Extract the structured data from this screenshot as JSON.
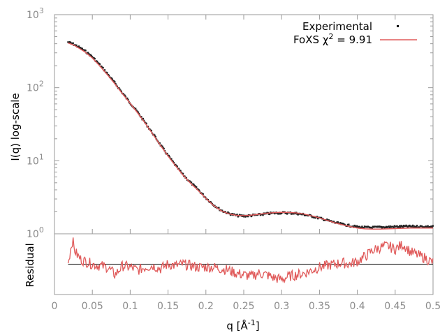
{
  "chart_data": [
    {
      "type": "scatter",
      "yscale": "log",
      "ylabel": "I(q) log-scale",
      "xlim": [
        0,
        0.5
      ],
      "ylim": [
        1,
        1000
      ],
      "yticks": [
        {
          "value": 1,
          "base": "10",
          "exp": "0"
        },
        {
          "value": 10,
          "base": "10",
          "exp": "1"
        },
        {
          "value": 100,
          "base": "10",
          "exp": "2"
        },
        {
          "value": 1000,
          "base": "10",
          "exp": "3"
        }
      ],
      "legend_position": "top-right",
      "legend": [
        {
          "label": "Experimental",
          "color": "#000000"
        },
        {
          "label": "FoXS χ",
          "sup": "2",
          "suffix": " = 9.91",
          "color": "#e05a5a"
        }
      ],
      "series": [
        {
          "name": "Experimental",
          "style": "points",
          "color": "#000000",
          "x": [
            0.018,
            0.025,
            0.03,
            0.04,
            0.05,
            0.06,
            0.07,
            0.08,
            0.09,
            0.1,
            0.11,
            0.12,
            0.13,
            0.14,
            0.15,
            0.16,
            0.17,
            0.18,
            0.19,
            0.2,
            0.21,
            0.22,
            0.23,
            0.24,
            0.25,
            0.26,
            0.27,
            0.28,
            0.29,
            0.3,
            0.31,
            0.32,
            0.33,
            0.34,
            0.35,
            0.36,
            0.37,
            0.38,
            0.39,
            0.4,
            0.41,
            0.42,
            0.43,
            0.44,
            0.45,
            0.46,
            0.47,
            0.48,
            0.49,
            0.5
          ],
          "y": [
            420,
            395,
            370,
            320,
            265,
            205,
            155,
            115,
            84,
            62,
            46,
            33,
            23.5,
            16.5,
            11.8,
            8.6,
            6.4,
            5.0,
            4.0,
            3.1,
            2.5,
            2.1,
            1.9,
            1.78,
            1.75,
            1.78,
            1.82,
            1.88,
            1.92,
            1.94,
            1.93,
            1.9,
            1.83,
            1.74,
            1.64,
            1.53,
            1.43,
            1.35,
            1.29,
            1.24,
            1.22,
            1.22,
            1.23,
            1.24,
            1.25,
            1.26,
            1.26,
            1.26,
            1.25,
            1.25
          ]
        },
        {
          "name": "FoXS χ2 = 9.91",
          "style": "line",
          "color": "#e05a5a",
          "x": [
            0.018,
            0.025,
            0.03,
            0.04,
            0.05,
            0.06,
            0.07,
            0.08,
            0.09,
            0.1,
            0.11,
            0.12,
            0.13,
            0.14,
            0.15,
            0.16,
            0.17,
            0.18,
            0.19,
            0.2,
            0.21,
            0.22,
            0.23,
            0.24,
            0.25,
            0.26,
            0.27,
            0.28,
            0.29,
            0.3,
            0.31,
            0.32,
            0.33,
            0.34,
            0.35,
            0.36,
            0.37,
            0.38,
            0.39,
            0.4,
            0.41,
            0.42,
            0.43,
            0.44,
            0.45,
            0.46,
            0.47,
            0.48,
            0.49,
            0.5
          ],
          "y": [
            410,
            385,
            360,
            310,
            255,
            198,
            150,
            112,
            82,
            61,
            45,
            32.5,
            23,
            16.2,
            11.6,
            8.5,
            6.3,
            4.9,
            3.9,
            3.05,
            2.45,
            2.07,
            1.88,
            1.79,
            1.77,
            1.8,
            1.85,
            1.91,
            1.95,
            1.97,
            1.96,
            1.93,
            1.86,
            1.76,
            1.65,
            1.53,
            1.42,
            1.33,
            1.26,
            1.2,
            1.17,
            1.16,
            1.16,
            1.17,
            1.18,
            1.19,
            1.2,
            1.2,
            1.2,
            1.2
          ]
        }
      ]
    },
    {
      "type": "line",
      "ylabel": "Residual",
      "xlabel": "q [Å",
      "xlabel_sup": "-1",
      "xlabel_suffix": "]",
      "xlim": [
        0,
        0.5
      ],
      "xticks": [
        "0",
        "0.05",
        "0.1",
        "0.15",
        "0.2",
        "0.25",
        "0.3",
        "0.35",
        "0.4",
        "0.45",
        "0.5"
      ],
      "ylim": [
        -1,
        1
      ],
      "reference_line": 0,
      "series": [
        {
          "name": "",
          "color": "#e05a5a",
          "x": [
            0.018,
            0.02,
            0.022,
            0.024,
            0.026,
            0.028,
            0.03,
            0.035,
            0.04,
            0.045,
            0.05,
            0.06,
            0.07,
            0.08,
            0.085,
            0.09,
            0.1,
            0.11,
            0.12,
            0.13,
            0.14,
            0.15,
            0.16,
            0.17,
            0.18,
            0.19,
            0.2,
            0.21,
            0.22,
            0.23,
            0.24,
            0.25,
            0.26,
            0.27,
            0.28,
            0.29,
            0.3,
            0.31,
            0.32,
            0.33,
            0.34,
            0.35,
            0.36,
            0.37,
            0.38,
            0.39,
            0.4,
            0.41,
            0.42,
            0.43,
            0.44,
            0.45,
            0.46,
            0.465,
            0.47,
            0.48,
            0.49,
            0.5
          ],
          "y": [
            0.05,
            0.3,
            0.6,
            0.8,
            0.5,
            0.4,
            0.3,
            0.15,
            0.1,
            0.05,
            0.0,
            -0.05,
            -0.1,
            -0.35,
            -0.2,
            -0.05,
            -0.1,
            -0.2,
            -0.1,
            -0.05,
            -0.15,
            0.0,
            -0.05,
            0.0,
            -0.05,
            -0.1,
            -0.1,
            -0.1,
            -0.15,
            -0.2,
            -0.3,
            -0.35,
            -0.4,
            -0.3,
            -0.35,
            -0.45,
            -0.5,
            -0.4,
            -0.35,
            -0.3,
            -0.2,
            -0.1,
            -0.05,
            0.0,
            0.05,
            0.0,
            0.1,
            0.25,
            0.45,
            0.55,
            0.6,
            0.5,
            0.65,
            0.55,
            0.4,
            0.3,
            0.2,
            0.05
          ]
        }
      ]
    }
  ]
}
